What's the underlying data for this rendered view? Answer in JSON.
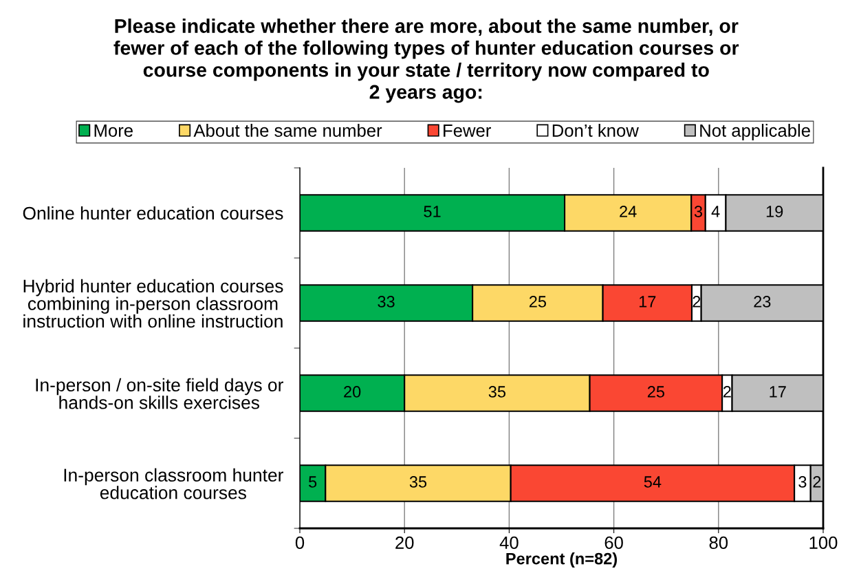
{
  "chart_data": {
    "type": "bar",
    "orientation": "horizontal",
    "stacked": true,
    "title": "Please indicate whether there are more, about the same number, or\nfewer of each of the following types of hunter education courses or\ncourse components in your state / territory now compared to\n2 years ago:",
    "xlabel": "Percent (n=82)",
    "categories": [
      "Online hunter education courses",
      "Hybrid hunter education courses\ncombining in-person classroom\ninstruction with online instruction",
      "In-person / on-site field days or\nhands-on skills exercises",
      "In-person classroom hunter\neducation courses"
    ],
    "series": [
      {
        "name": "More",
        "color": "#00b050",
        "values": [
          50.6,
          33.0,
          20.0,
          4.9
        ],
        "value_labels": [
          "51",
          "33",
          "20",
          "5"
        ]
      },
      {
        "name": "About the same number",
        "color": "#fdd866",
        "values": [
          24.2,
          24.9,
          35.4,
          35.4
        ],
        "value_labels": [
          "24",
          "25",
          "35",
          "35"
        ]
      },
      {
        "name": "Fewer",
        "color": "#fa4733",
        "values": [
          2.7,
          17.0,
          25.3,
          54.2
        ],
        "value_labels": [
          "3",
          "17",
          "25",
          "54"
        ]
      },
      {
        "name": "Don’t know",
        "color": "#ffffff",
        "values": [
          3.9,
          1.8,
          1.9,
          3.1
        ],
        "value_labels": [
          "4",
          "2",
          "2",
          "3"
        ]
      },
      {
        "name": "Not applicable",
        "color": "#bfbfbf",
        "values": [
          18.6,
          23.3,
          17.4,
          2.4
        ],
        "value_labels": [
          "19",
          "23",
          "17",
          "2"
        ]
      }
    ],
    "xlim": [
      0,
      100
    ],
    "xticks": [
      0,
      20,
      40,
      60,
      80,
      100
    ],
    "grid": "x",
    "legend": "top"
  }
}
